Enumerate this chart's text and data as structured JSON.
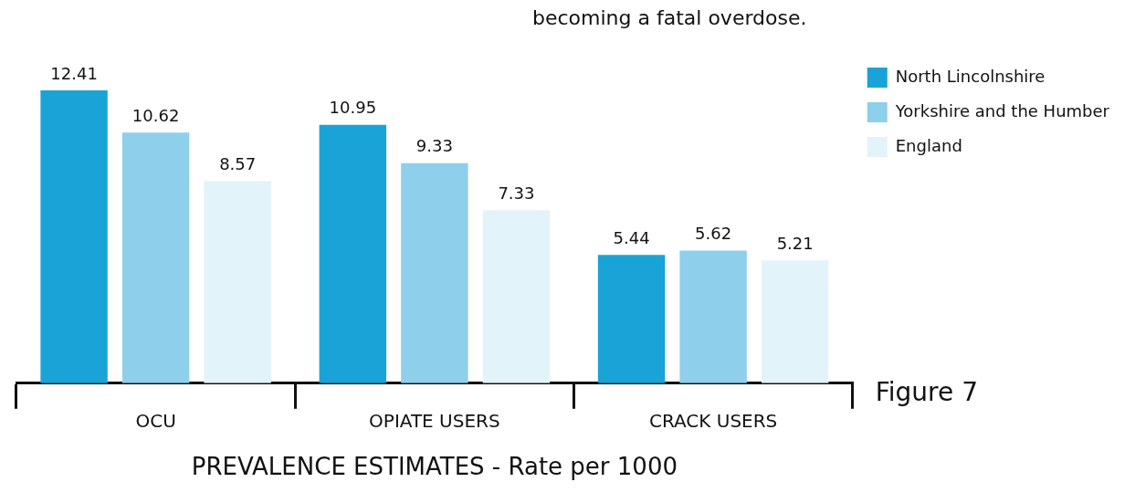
{
  "chart_data": {
    "type": "bar",
    "categories": [
      "OCU",
      "OPIATE USERS",
      "CRACK USERS"
    ],
    "series": [
      {
        "name": "North Lincolnshire",
        "color": "#1aa3d6",
        "values": [
          12.41,
          10.95,
          5.44
        ]
      },
      {
        "name": "Yorkshire and the Humber",
        "color": "#8ecfec",
        "values": [
          10.62,
          9.33,
          5.62
        ]
      },
      {
        "name": "England",
        "color": "#e3f3fa",
        "values": [
          8.57,
          7.33,
          5.21
        ]
      }
    ],
    "xlabel": "PREVALENCE ESTIMATES - Rate per 1000",
    "annotations": [
      "becoming a fatal overdose.",
      "Figure 7"
    ],
    "data_labels": true,
    "legend": "right"
  }
}
